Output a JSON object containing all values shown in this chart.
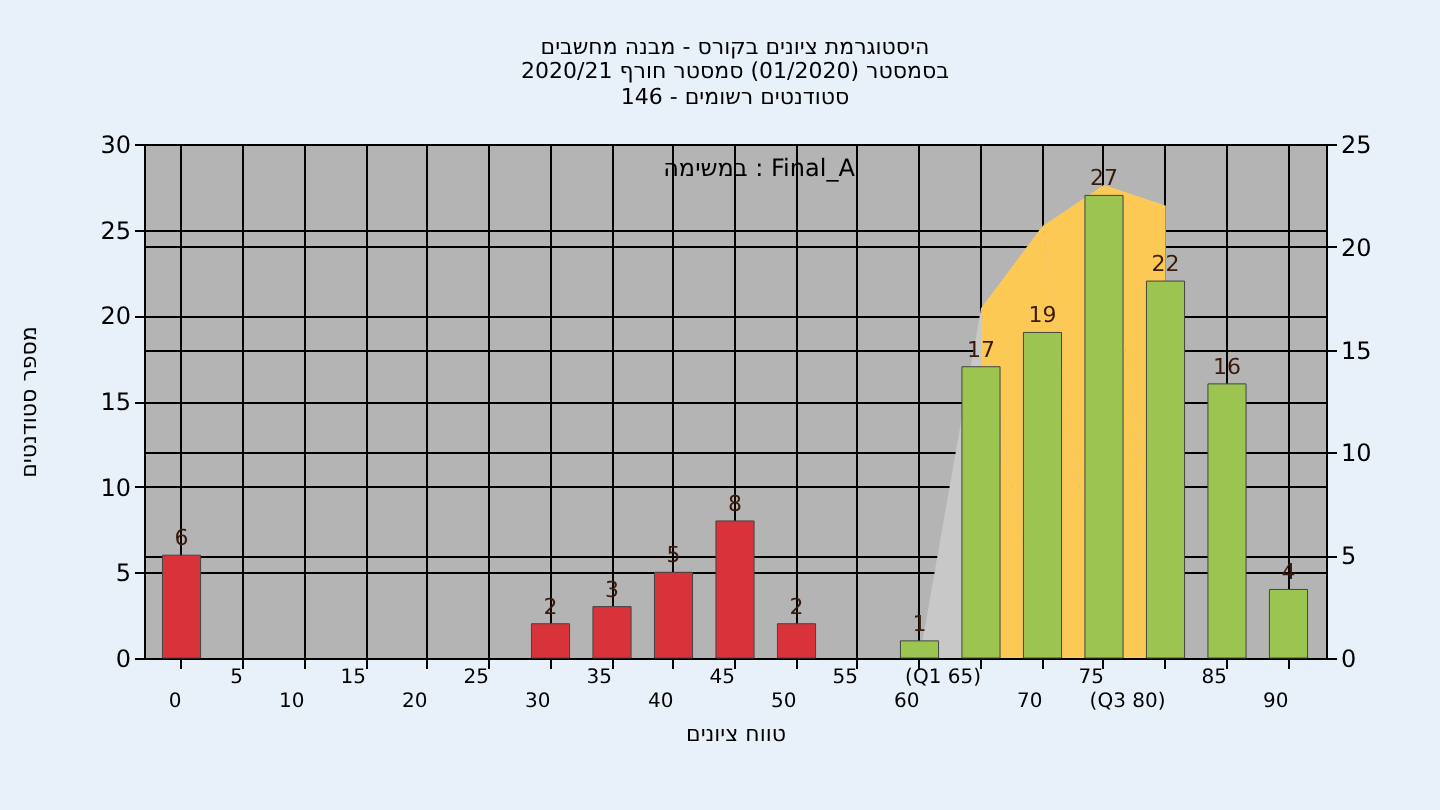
{
  "chart_data": {
    "type": "bar",
    "title": "היסטוגרמת ציונים בקורס - מבנה מחשבים",
    "subtitle": "בסמסטר  (01/2020)  סמסטר חורף 2020/21\nסטודנטים רשומים - 146",
    "xlabel": "טווח ציונים",
    "ylabel": "מספר סטודנטים",
    "annotations": [
      "במשימה : Final_A"
    ],
    "categories": [
      "0",
      "5",
      "10",
      "15",
      "20",
      "25",
      "30",
      "35",
      "40",
      "45",
      "50",
      "55",
      "60",
      "(Q1 65)",
      "70",
      "75",
      "(Q3 80)",
      "85",
      "90"
    ],
    "series": [
      {
        "values": [
          6,
          null,
          null,
          null,
          null,
          null,
          2,
          3,
          5,
          8,
          2,
          null,
          1,
          17,
          19,
          27,
          22,
          16,
          4
        ],
        "value_labels": [
          "6",
          null,
          null,
          null,
          null,
          null,
          "2",
          "3",
          "5",
          "8",
          "2",
          null,
          "1",
          "17",
          "19",
          "27",
          "22",
          "16",
          "4"
        ],
        "colors": [
          "#d8333a",
          null,
          null,
          null,
          null,
          null,
          "#d8333a",
          "#d8333a",
          "#d8333a",
          "#d8333a",
          "#d8333a",
          null,
          "#9bc451",
          "#9bc451",
          "#9bc451",
          "#9bc451",
          "#9bc451",
          "#9bc451",
          "#9bc451"
        ]
      },
      {
        "type": "area",
        "axis": "y2",
        "color": "#c8c8c8",
        "values": [
          null,
          null,
          null,
          null,
          null,
          null,
          null,
          null,
          null,
          null,
          null,
          null,
          0,
          17,
          21,
          23,
          22,
          null,
          null
        ]
      },
      {
        "type": "area",
        "axis": "y2",
        "color": "#fdc955",
        "values": [
          null,
          null,
          null,
          null,
          null,
          null,
          null,
          null,
          null,
          null,
          null,
          null,
          null,
          17,
          21,
          23,
          22,
          null,
          null
        ]
      }
    ],
    "ylim": [
      0,
      30
    ],
    "yticks": [
      0,
      5,
      10,
      15,
      20,
      25,
      30
    ],
    "y2lim": [
      0,
      25
    ],
    "y2ticks": [
      0,
      5,
      10,
      15,
      20,
      25
    ],
    "grid": true
  }
}
